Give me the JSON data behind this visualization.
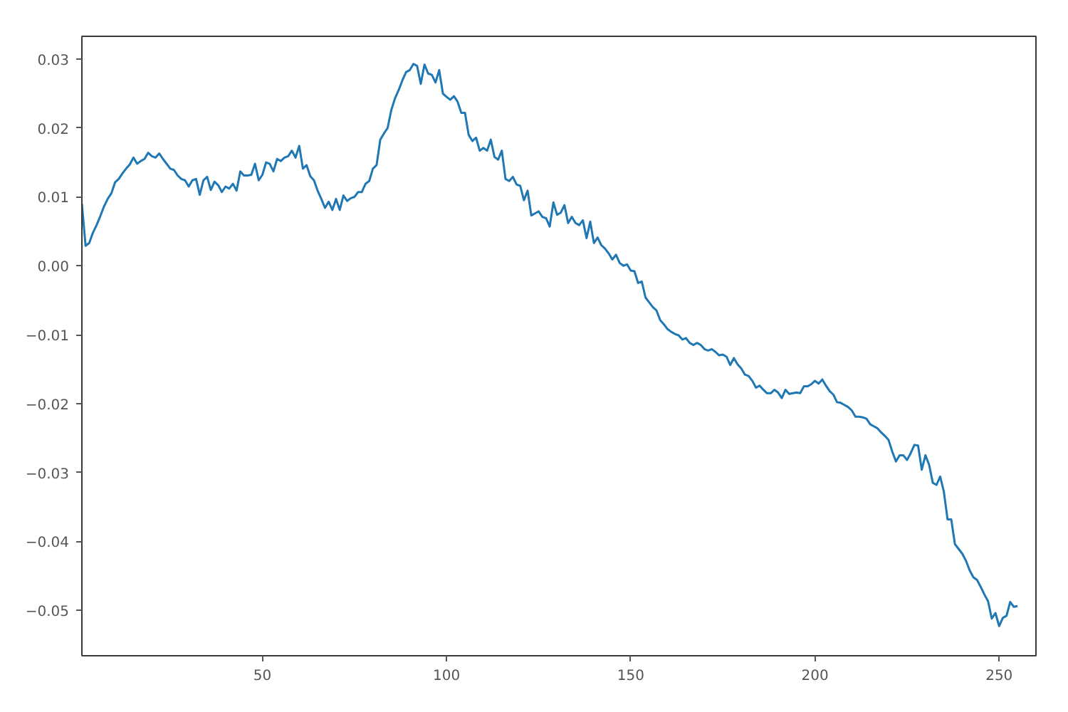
{
  "chart_data": {
    "type": "line",
    "x": [
      1,
      2,
      3,
      4,
      5,
      6,
      7,
      8,
      9,
      10,
      11,
      12,
      13,
      14,
      15,
      16,
      17,
      18,
      19,
      20,
      21,
      22,
      23,
      24,
      25,
      26,
      27,
      28,
      29,
      30,
      31,
      32,
      33,
      34,
      35,
      36,
      37,
      38,
      39,
      40,
      41,
      42,
      43,
      44,
      45,
      46,
      47,
      48,
      49,
      50,
      51,
      52,
      53,
      54,
      55,
      56,
      57,
      58,
      59,
      60,
      61,
      62,
      63,
      64,
      65,
      66,
      67,
      68,
      69,
      70,
      71,
      72,
      73,
      74,
      75,
      76,
      77,
      78,
      79,
      80,
      81,
      82,
      83,
      84,
      85,
      86,
      87,
      88,
      89,
      90,
      91,
      92,
      93,
      94,
      95,
      96,
      97,
      98,
      99,
      100,
      101,
      102,
      103,
      104,
      105,
      106,
      107,
      108,
      109,
      110,
      111,
      112,
      113,
      114,
      115,
      116,
      117,
      118,
      119,
      120,
      121,
      122,
      123,
      124,
      125,
      126,
      127,
      128,
      129,
      130,
      131,
      132,
      133,
      134,
      135,
      136,
      137,
      138,
      139,
      140,
      141,
      142,
      143,
      144,
      145,
      146,
      147,
      148,
      149,
      150,
      151,
      152,
      153,
      154,
      155,
      156,
      157,
      158,
      159,
      160,
      161,
      162,
      163,
      164,
      165,
      166,
      167,
      168,
      169,
      170,
      171,
      172,
      173,
      174,
      175,
      176,
      177,
      178,
      179,
      180,
      181,
      182,
      183,
      184,
      185,
      186,
      187,
      188,
      189,
      190,
      191,
      192,
      193,
      194,
      195,
      196,
      197,
      198,
      199,
      200,
      201,
      202,
      203,
      204,
      205,
      206,
      207,
      208,
      209,
      210,
      211,
      212,
      213,
      214,
      215,
      216,
      217,
      218,
      219,
      220,
      221,
      222,
      223,
      224,
      225,
      226,
      227,
      228,
      229,
      230,
      231,
      232,
      233,
      234,
      235,
      236,
      237,
      238,
      239,
      240,
      241,
      242,
      243,
      244,
      245,
      246,
      247,
      248,
      249,
      250,
      251,
      252,
      253,
      254,
      255
    ],
    "series": [
      {
        "color": "#1f77b4",
        "values": [
          0.009,
          0.0029,
          0.0033,
          0.0048,
          0.0059,
          0.0072,
          0.0086,
          0.0097,
          0.0105,
          0.0121,
          0.0126,
          0.0134,
          0.0141,
          0.0147,
          0.0157,
          0.0148,
          0.0152,
          0.0155,
          0.0164,
          0.0159,
          0.0157,
          0.0163,
          0.0155,
          0.0148,
          0.0141,
          0.0139,
          0.0131,
          0.0126,
          0.0124,
          0.0115,
          0.0124,
          0.0126,
          0.0103,
          0.0124,
          0.0129,
          0.011,
          0.0122,
          0.0117,
          0.0107,
          0.0115,
          0.0112,
          0.0119,
          0.0109,
          0.0137,
          0.0131,
          0.0131,
          0.0132,
          0.0148,
          0.0124,
          0.0132,
          0.015,
          0.0148,
          0.0137,
          0.0155,
          0.0152,
          0.0157,
          0.0159,
          0.0167,
          0.0157,
          0.0174,
          0.0141,
          0.0146,
          0.013,
          0.0124,
          0.0109,
          0.0097,
          0.0084,
          0.0093,
          0.0081,
          0.0097,
          0.0081,
          0.0102,
          0.0094,
          0.0098,
          0.01,
          0.0107,
          0.0107,
          0.0119,
          0.0123,
          0.0141,
          0.0146,
          0.0183,
          0.0192,
          0.02,
          0.0226,
          0.0243,
          0.0255,
          0.0269,
          0.0281,
          0.0284,
          0.0293,
          0.029,
          0.0264,
          0.0292,
          0.0279,
          0.0277,
          0.0266,
          0.0284,
          0.025,
          0.0245,
          0.0241,
          0.0246,
          0.0238,
          0.0222,
          0.0222,
          0.019,
          0.0181,
          0.0186,
          0.0167,
          0.0171,
          0.0167,
          0.0183,
          0.0158,
          0.0154,
          0.0167,
          0.0126,
          0.0123,
          0.0129,
          0.0118,
          0.0116,
          0.0095,
          0.0109,
          0.0073,
          0.0076,
          0.0079,
          0.0071,
          0.0069,
          0.0057,
          0.0092,
          0.0074,
          0.0077,
          0.0088,
          0.0062,
          0.0071,
          0.0062,
          0.0059,
          0.0066,
          0.004,
          0.0064,
          0.0033,
          0.0041,
          0.003,
          0.0025,
          0.0018,
          0.0009,
          0.0016,
          0.0004,
          0.0,
          0.0002,
          -0.0007,
          -0.0008,
          -0.0025,
          -0.0023,
          -0.0046,
          -0.0053,
          -0.006,
          -0.0065,
          -0.0079,
          -0.0085,
          -0.0092,
          -0.0096,
          -0.0099,
          -0.0101,
          -0.0107,
          -0.0105,
          -0.0112,
          -0.0115,
          -0.0112,
          -0.0115,
          -0.0121,
          -0.0123,
          -0.0121,
          -0.0125,
          -0.013,
          -0.0129,
          -0.0132,
          -0.0144,
          -0.0134,
          -0.0143,
          -0.0149,
          -0.0158,
          -0.016,
          -0.0167,
          -0.0177,
          -0.0174,
          -0.018,
          -0.0185,
          -0.0185,
          -0.018,
          -0.0184,
          -0.0192,
          -0.018,
          -0.0186,
          -0.0185,
          -0.0184,
          -0.0185,
          -0.0175,
          -0.0175,
          -0.0172,
          -0.0167,
          -0.0171,
          -0.0165,
          -0.0174,
          -0.0182,
          -0.0187,
          -0.0198,
          -0.0199,
          -0.0202,
          -0.0205,
          -0.021,
          -0.0219,
          -0.0219,
          -0.022,
          -0.0222,
          -0.023,
          -0.0233,
          -0.0236,
          -0.0242,
          -0.0247,
          -0.0253,
          -0.027,
          -0.0284,
          -0.0275,
          -0.0275,
          -0.0282,
          -0.0272,
          -0.026,
          -0.0261,
          -0.0296,
          -0.0275,
          -0.0289,
          -0.0315,
          -0.0318,
          -0.0306,
          -0.0328,
          -0.0368,
          -0.0368,
          -0.0404,
          -0.0411,
          -0.0418,
          -0.0428,
          -0.0442,
          -0.0452,
          -0.0456,
          -0.0466,
          -0.0477,
          -0.0487,
          -0.0512,
          -0.0504,
          -0.0523,
          -0.0511,
          -0.0508,
          -0.0488,
          -0.0495,
          -0.0494
        ]
      }
    ],
    "xlim": [
      1,
      260
    ],
    "ylim": [
      -0.0566,
      0.0333
    ],
    "xticks": [
      50,
      100,
      150,
      200,
      250
    ],
    "yticks": [
      {
        "value": -0.05,
        "label": "−0.05"
      },
      {
        "value": -0.04,
        "label": "−0.04"
      },
      {
        "value": -0.03,
        "label": "−0.03"
      },
      {
        "value": -0.02,
        "label": "−0.02"
      },
      {
        "value": -0.01,
        "label": "−0.01"
      },
      {
        "value": 0,
        "label": "0.00"
      },
      {
        "value": 0.01,
        "label": "0.01"
      },
      {
        "value": 0.02,
        "label": "0.02"
      },
      {
        "value": 0.03,
        "label": "0.03"
      }
    ],
    "grid": false,
    "line_style": "solid"
  }
}
